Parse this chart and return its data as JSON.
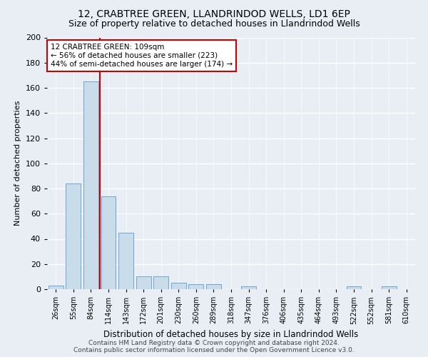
{
  "title": "12, CRABTREE GREEN, LLANDRINDOD WELLS, LD1 6EP",
  "subtitle": "Size of property relative to detached houses in Llandrindod Wells",
  "xlabel": "Distribution of detached houses by size in Llandrindod Wells",
  "ylabel": "Number of detached properties",
  "categories": [
    "26sqm",
    "55sqm",
    "84sqm",
    "114sqm",
    "143sqm",
    "172sqm",
    "201sqm",
    "230sqm",
    "260sqm",
    "289sqm",
    "318sqm",
    "347sqm",
    "376sqm",
    "406sqm",
    "435sqm",
    "464sqm",
    "493sqm",
    "522sqm",
    "552sqm",
    "581sqm",
    "610sqm"
  ],
  "values": [
    3,
    84,
    165,
    74,
    45,
    10,
    10,
    5,
    4,
    4,
    0,
    2,
    0,
    0,
    0,
    0,
    0,
    2,
    0,
    2,
    0
  ],
  "bar_color": "#c9dcea",
  "bar_edge_color": "#5b9bd5",
  "vertical_line_x": 2.5,
  "vline_color": "#cc0000",
  "annotation_text": "12 CRABTREE GREEN: 109sqm\n← 56% of detached houses are smaller (223)\n44% of semi-detached houses are larger (174) →",
  "annotation_box_color": "#ffffff",
  "annotation_box_edge_color": "#cc0000",
  "ylim": [
    0,
    200
  ],
  "yticks": [
    0,
    20,
    40,
    60,
    80,
    100,
    120,
    140,
    160,
    180,
    200
  ],
  "footer_line1": "Contains HM Land Registry data © Crown copyright and database right 2024.",
  "footer_line2": "Contains public sector information licensed under the Open Government Licence v3.0.",
  "bg_color": "#e8eef4",
  "plot_bg_color": "#e8eef4",
  "grid_color": "#ffffff",
  "title_fontsize": 10,
  "subtitle_fontsize": 9,
  "xlabel_fontsize": 8.5,
  "ylabel_fontsize": 8,
  "footer_fontsize": 6.5
}
